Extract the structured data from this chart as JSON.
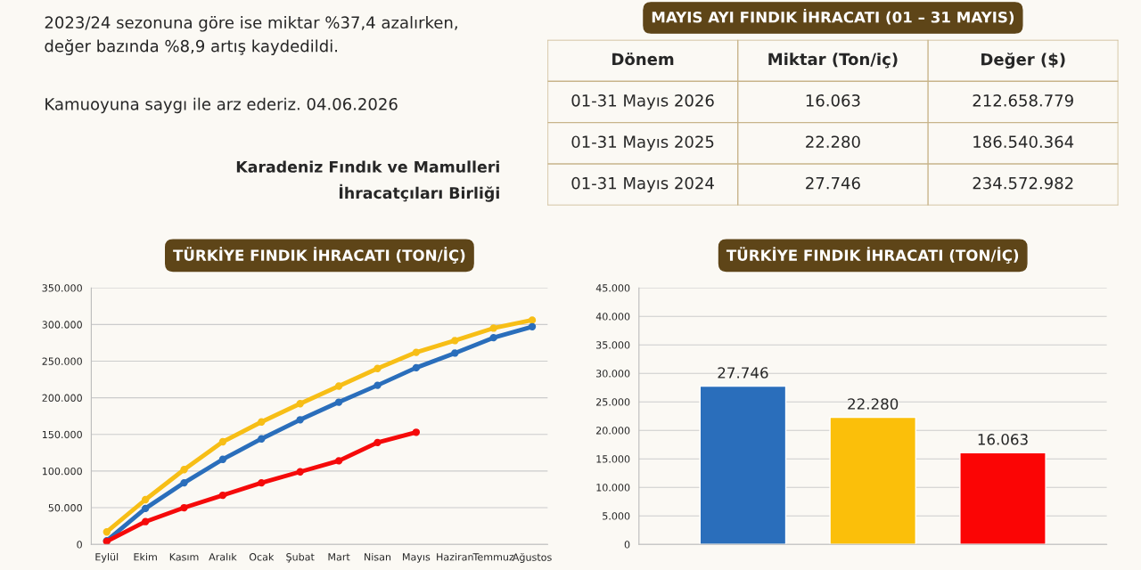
{
  "chart_data": [
    {
      "type": "other",
      "annotations": [
        "2023/24 sezonuna göre ise miktar %37,4 azalırken,\ndeğer bazında %8,9 artış kaydedildi.",
        "Kamuoyuna saygı ile arz ederiz. 04.06.2026",
        "Karadeniz Fındık ve Mamulleri\nİhracatçıları Birliği"
      ]
    },
    {
      "type": "other",
      "title": "MAYIS AYI FINDIK İHRACATI (01 – 31 MAYIS)",
      "categories": [
        "Dönem",
        "Miktar (Ton/iç)",
        "Değer ($)"
      ],
      "cell_labels": [
        [
          "01-31 Mayıs 2026",
          "16.063",
          "212.658.779"
        ],
        [
          "01-31 Mayıs 2025",
          "22.280",
          "186.540.364"
        ],
        [
          "01-31 Mayıs 2024",
          "27.746",
          "234.572.982"
        ]
      ]
    },
    {
      "type": "line",
      "title": "TÜRKİYE FINDIK İHRACATI (TON/İÇ)",
      "categories": [
        "Eylül",
        "Ekim",
        "Kasım",
        "Aralık",
        "Ocak",
        "Şubat",
        "Mart",
        "Nisan",
        "Mayıs",
        "Haziran",
        "Temmuz",
        "Ağustos"
      ],
      "series": [
        {
          "color": "#f7be16",
          "values": [
            17000,
            61000,
            102000,
            140000,
            167000,
            192000,
            216000,
            240000,
            262000,
            278000,
            295000,
            306000
          ]
        },
        {
          "color": "#2a6ebb",
          "values": [
            5000,
            49000,
            84000,
            116000,
            144000,
            170000,
            194000,
            217000,
            241000,
            261000,
            282000,
            297000
          ]
        },
        {
          "color": "#f50a0a",
          "values": [
            4000,
            31000,
            50000,
            67000,
            84000,
            99000,
            114000,
            139000,
            153000,
            null,
            null,
            null
          ]
        }
      ],
      "ylim": [
        0,
        350000
      ],
      "yticks": [
        {
          "value": 0,
          "label": "0"
        },
        {
          "value": 50000,
          "label": "50.000"
        },
        {
          "value": 100000,
          "label": "100.000"
        },
        {
          "value": 150000,
          "label": "150.000"
        },
        {
          "value": 200000,
          "label": "200.000"
        },
        {
          "value": 250000,
          "label": "250.000"
        },
        {
          "value": 300000,
          "label": "300.000"
        },
        {
          "value": 350000,
          "label": "350.000"
        }
      ],
      "grid": "y",
      "marker": "circle"
    },
    {
      "type": "bar",
      "title": "TÜRKİYE FINDIK İHRACATI (TON/İÇ)",
      "categories": [
        null,
        null,
        null
      ],
      "values": [
        27746,
        22280,
        16063
      ],
      "colors": [
        "#2a6ebb",
        "#fbbf0a",
        "#fb0505"
      ],
      "value_labels": [
        "27.746",
        "22.280",
        "16.063"
      ],
      "ylim": [
        0,
        45000
      ],
      "yticks": [
        {
          "value": 0,
          "label": "0"
        },
        {
          "value": 5000,
          "label": "5.000"
        },
        {
          "value": 10000,
          "label": "10.000"
        },
        {
          "value": 15000,
          "label": "15.000"
        },
        {
          "value": 20000,
          "label": "20.000"
        },
        {
          "value": 25000,
          "label": "25.000"
        },
        {
          "value": 30000,
          "label": "30.000"
        },
        {
          "value": 35000,
          "label": "35.000"
        },
        {
          "value": 40000,
          "label": "40.000"
        },
        {
          "value": 45000,
          "label": "45.000"
        }
      ],
      "grid": "y"
    }
  ]
}
